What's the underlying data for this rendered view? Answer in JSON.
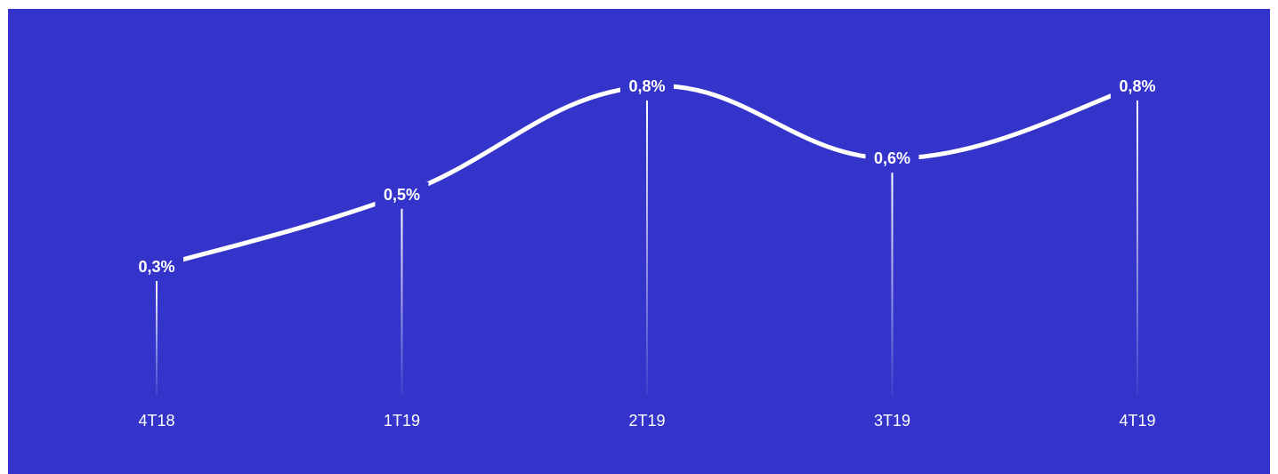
{
  "chart_data": {
    "type": "line",
    "title": "",
    "xlabel": "",
    "ylabel": "",
    "categories": [
      "4T18",
      "1T19",
      "2T19",
      "3T19",
      "4T19"
    ],
    "values": [
      0.3,
      0.5,
      0.8,
      0.6,
      0.8
    ],
    "value_labels": [
      "0,3%",
      "0,5%",
      "0,8%",
      "0,6%",
      "0,8%"
    ],
    "unit": "%",
    "grid": false,
    "legend": "none",
    "colors": {
      "background": "#3434CA",
      "line": "#FFFFFF",
      "text": "#FFFFFF"
    }
  }
}
